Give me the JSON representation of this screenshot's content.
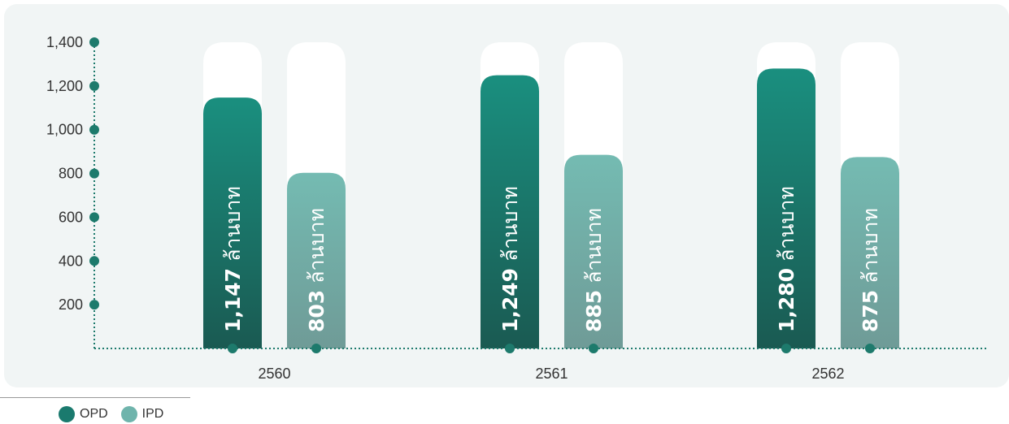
{
  "chart_data": {
    "type": "bar",
    "categories": [
      "2560",
      "2561",
      "2562"
    ],
    "series": [
      {
        "name": "OPD",
        "values": [
          1147,
          1249,
          1280
        ],
        "labels": [
          "1,147",
          "1,249",
          "1,280"
        ],
        "color": "#1a7a6e"
      },
      {
        "name": "IPD",
        "values": [
          803,
          885,
          875
        ],
        "labels": [
          "803",
          "885",
          "875"
        ],
        "color": "#6fb4ac"
      }
    ],
    "unit_label": "ล้านบาท",
    "yticks": [
      "200",
      "400",
      "600",
      "800",
      "1,000",
      "1,200",
      "1,400"
    ],
    "ylim": [
      0,
      1400
    ],
    "grid": false,
    "legend": "bottom-left"
  }
}
